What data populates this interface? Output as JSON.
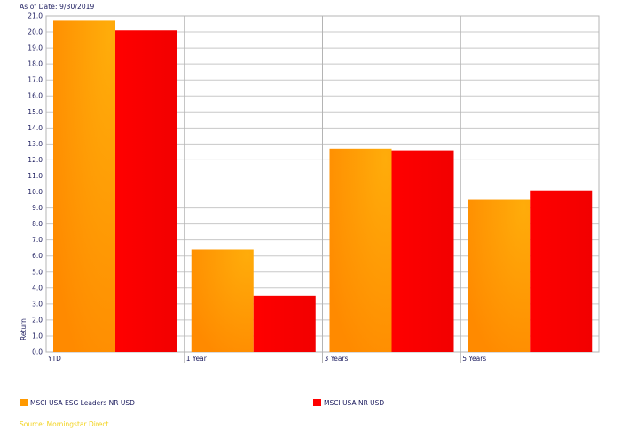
{
  "as_of_label": "As of Date: 9/30/2019",
  "source_label": "Source: Morningstar Direct",
  "colors": {
    "series_1": "#ff9900",
    "series_2": "#ff0000",
    "grid": "#c8c8c8",
    "axis_text": "#1b1b5e",
    "source": "#f2d21b"
  },
  "chart_data": {
    "type": "bar",
    "categories": [
      "YTD",
      "1 Year",
      "3 Years",
      "5 Years"
    ],
    "series": [
      {
        "name": "MSCI USA ESG Leaders NR USD",
        "values": [
          20.7,
          6.4,
          12.7,
          9.5
        ]
      },
      {
        "name": "MSCI USA NR USD",
        "values": [
          20.1,
          3.5,
          12.6,
          10.1
        ]
      }
    ],
    "ylabel": "Return",
    "ylim": [
      0,
      21
    ],
    "yticks": [
      "0.0",
      "1.0",
      "2.0",
      "3.0",
      "4.0",
      "5.0",
      "6.0",
      "7.0",
      "8.0",
      "9.0",
      "10.0",
      "11.0",
      "12.0",
      "13.0",
      "14.0",
      "15.0",
      "16.0",
      "17.0",
      "18.0",
      "19.0",
      "20.0",
      "21.0"
    ],
    "grid": true,
    "legend_position": "bottom"
  }
}
